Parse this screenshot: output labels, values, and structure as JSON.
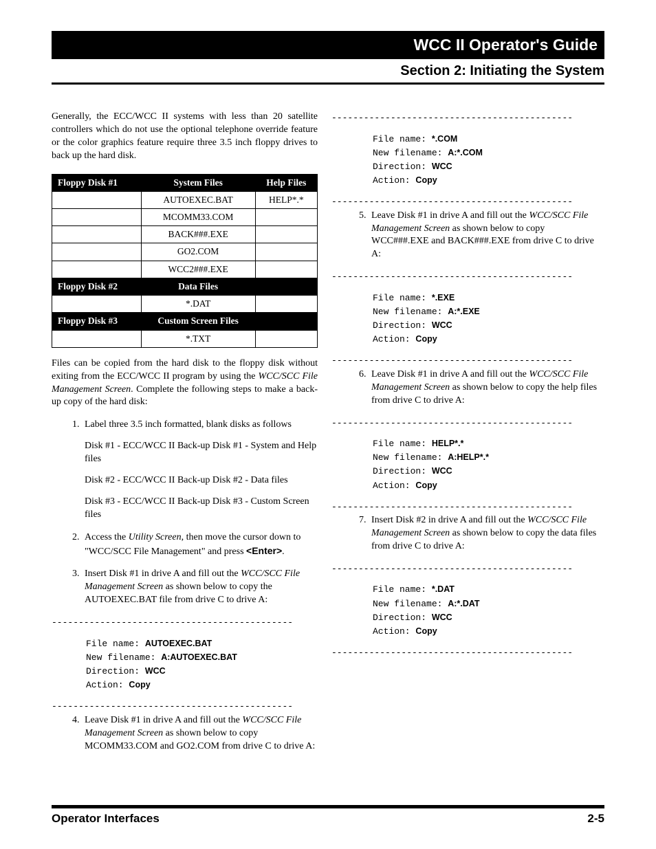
{
  "header": {
    "guide_title": "WCC II Operator's Guide",
    "section_title": "Section 2:  Initiating the System"
  },
  "intro_para": "Generally, the ECC/WCC II systems with less than 20 satellite controllers which do not use the optional telephone override feature or the color graphics feature require three 3.5 inch floppy drives to back up the hard disk.",
  "table": {
    "sections": [
      {
        "hdr": [
          "Floppy Disk #1",
          "System Files",
          "Help Files"
        ],
        "rows": [
          [
            "",
            "AUTOEXEC.BAT",
            "HELP*.*"
          ],
          [
            "",
            "MCOMM33.COM",
            ""
          ],
          [
            "",
            "BACK###.EXE",
            ""
          ],
          [
            "",
            "GO2.COM",
            ""
          ],
          [
            "",
            "WCC2###.EXE",
            ""
          ]
        ]
      },
      {
        "hdr": [
          "Floppy Disk #2",
          "Data Files",
          ""
        ],
        "rows": [
          [
            "",
            "*.DAT",
            ""
          ]
        ]
      },
      {
        "hdr": [
          "Floppy Disk #3",
          "Custom Screen Files",
          ""
        ],
        "rows": [
          [
            "",
            "*.TXT",
            ""
          ]
        ]
      }
    ]
  },
  "para2_a": "Files can be copied from the hard disk to the floppy disk without exiting from the ECC/WCC II program by using the ",
  "para2_i": "WCC/SCC File Management Screen",
  "para2_b": ". Complete the following steps to make a back-up copy of the hard disk:",
  "steps": {
    "s1": {
      "lead": "Label three 3.5 inch formatted, blank disks as follows",
      "d1": "Disk #1 - ECC/WCC II Back-up Disk #1 - System and Help files",
      "d2": "Disk #2 - ECC/WCC II Back-up Disk #2 - Data files",
      "d3": "Disk #3 - ECC/WCC II Back-up Disk #3 - Custom Screen files"
    },
    "s2_a": "Access the ",
    "s2_i": "Utility Screen",
    "s2_b": ", then move the cursor down to \"WCC/SCC File Management\" and press ",
    "s2_key": "<Enter>",
    "s2_c": ".",
    "s3_a": "Insert Disk #1 in drive A and fill out the ",
    "s3_i": "WCC/SCC File Management Screen",
    "s3_b": " as shown below to copy the AUTOEXEC.BAT file from drive C to drive A:",
    "s4_a": "Leave Disk #1 in drive A and fill out the ",
    "s4_i": "WCC/SCC File Management Screen",
    "s4_b": " as shown below to copy MCOMM33.COM and GO2.COM from drive C to drive A:",
    "s5_a": "Leave Disk #1 in drive A and fill out the ",
    "s5_i": "WCC/SCC File Management Screen",
    "s5_b": " as shown below to copy WCC###.EXE and BACK###.EXE from drive C to drive A:",
    "s6_a": "Leave Disk #1 in drive A and fill out the ",
    "s6_i": "WCC/SCC File Management Screen",
    "s6_b": " as shown below to copy the help files from drive C to drive A:",
    "s7_a": "Insert Disk #2 in drive A and fill out the ",
    "s7_i": "WCC/SCC File Management Screen",
    "s7_b": " as shown below to copy the data files from drive C to drive A:"
  },
  "labels": {
    "file_name": "File name:  ",
    "new_filename": "New filename:  ",
    "direction": "Direction:  ",
    "action": "Action:  "
  },
  "blocks": {
    "b3": {
      "fn": "AUTOEXEC.BAT",
      "nf": "A:AUTOEXEC.BAT",
      "dir": "WCC",
      "act": "Copy"
    },
    "b4": {
      "fn": "*.COM",
      "nf": "A:*.COM",
      "dir": "WCC",
      "act": "Copy"
    },
    "b5": {
      "fn": "*.EXE",
      "nf": "A:*.EXE",
      "dir": "WCC",
      "act": "Copy"
    },
    "b6": {
      "fn": "HELP*.*",
      "nf": "A:HELP*.*",
      "dir": "WCC",
      "act": "Copy"
    },
    "b7": {
      "fn": "*.DAT",
      "nf": "A:*.DAT",
      "dir": "WCC",
      "act": "Copy"
    }
  },
  "dash": "---------------------------------------------",
  "footer": {
    "left": "Operator Interfaces",
    "right": "2-5"
  }
}
